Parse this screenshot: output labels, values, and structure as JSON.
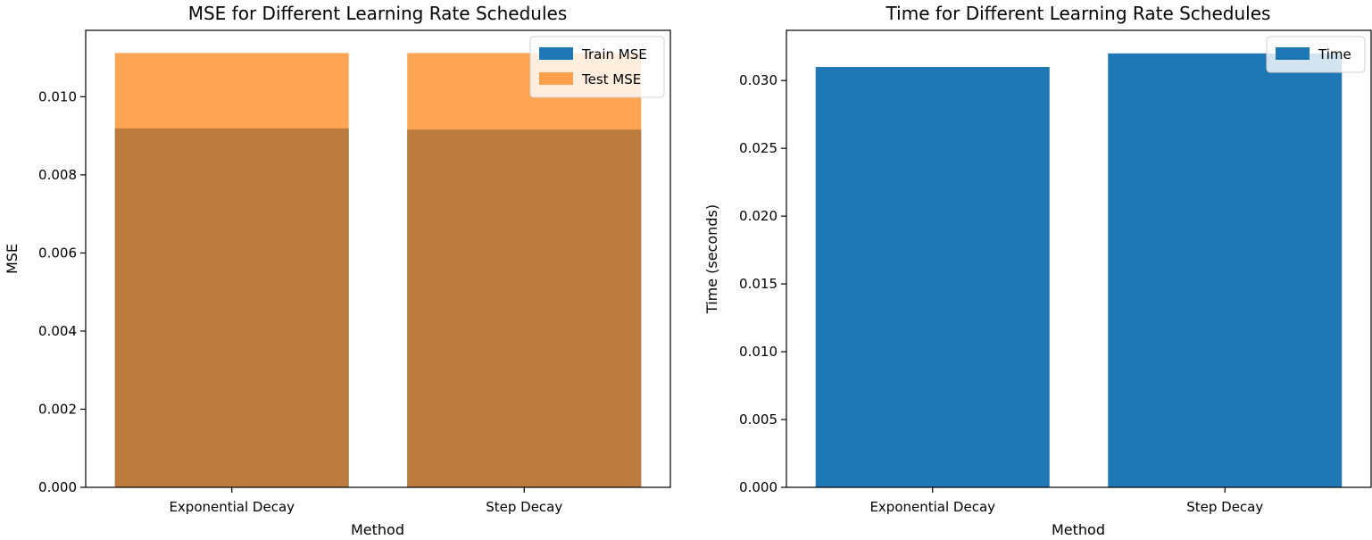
{
  "chart_data": [
    {
      "type": "bar",
      "title": "MSE for Different Learning Rate Schedules",
      "xlabel": "Method",
      "ylabel": "MSE",
      "categories": [
        "Exponential Decay",
        "Step Decay"
      ],
      "series": [
        {
          "name": "Train MSE",
          "values": [
            0.00919,
            0.00916
          ],
          "color": "#1f77b4",
          "opacity": 1.0
        },
        {
          "name": "Test MSE",
          "values": [
            0.01112,
            0.01112
          ],
          "color": "#ff7f0e",
          "opacity": 0.7
        }
      ],
      "ylim": [
        0,
        0.0117
      ],
      "yticks": [
        "0.000",
        "0.002",
        "0.004",
        "0.006",
        "0.008",
        "0.010"
      ],
      "ytick_values": [
        0,
        0.002,
        0.004,
        0.006,
        0.008,
        0.01
      ],
      "legend_position": "top-right",
      "grid": false
    },
    {
      "type": "bar",
      "title": "Time for Different Learning Rate Schedules",
      "xlabel": "Method",
      "ylabel": "Time (seconds)",
      "categories": [
        "Exponential Decay",
        "Step Decay"
      ],
      "series": [
        {
          "name": "Time",
          "values": [
            0.031,
            0.032
          ],
          "color": "#1f77b4",
          "opacity": 1.0
        }
      ],
      "ylim": [
        0,
        0.0337
      ],
      "yticks": [
        "0.000",
        "0.005",
        "0.010",
        "0.015",
        "0.020",
        "0.025",
        "0.030"
      ],
      "ytick_values": [
        0,
        0.005,
        0.01,
        0.015,
        0.02,
        0.025,
        0.03
      ],
      "legend_position": "top-right",
      "grid": false
    }
  ]
}
